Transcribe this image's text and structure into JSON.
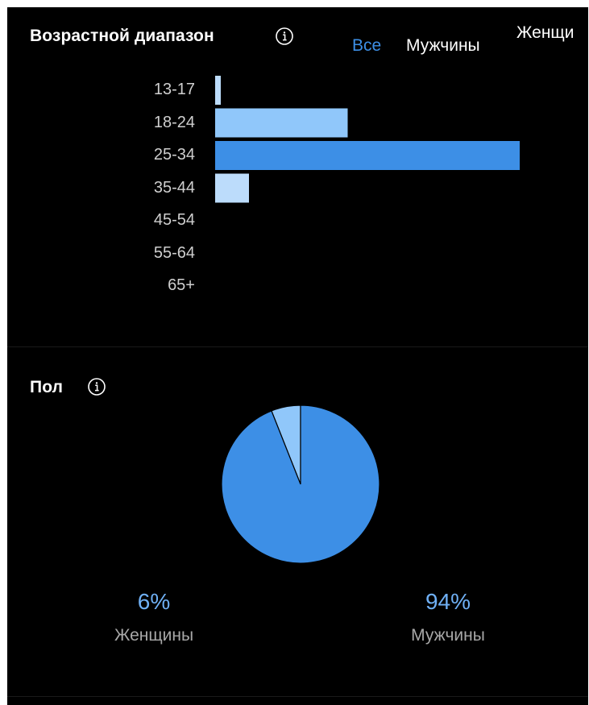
{
  "age": {
    "title": "Возрастной диапазон",
    "tabs": [
      {
        "label": "Все",
        "active": true
      },
      {
        "label": "Мужчины",
        "active": false
      },
      {
        "label": "Женщины",
        "active": false
      }
    ]
  },
  "gender": {
    "title": "Пол",
    "legend": [
      {
        "pct": "6%",
        "label": "Женщины"
      },
      {
        "pct": "94%",
        "label": "Мужчины"
      }
    ]
  },
  "colors": {
    "background": "#000000",
    "accent": "#3d8fe6",
    "light": "#90c7fa",
    "lighter": "#bcdcfb"
  },
  "chart_data": [
    {
      "type": "bar",
      "orientation": "horizontal",
      "categories": [
        "13-17",
        "18-24",
        "25-34",
        "35-44",
        "45-54",
        "55-64",
        "65+"
      ],
      "values": [
        1,
        23.5,
        54,
        6,
        0,
        0,
        0
      ],
      "xlim": [
        0,
        100
      ],
      "colors": [
        "#bcdcfb",
        "#90c7fa",
        "#3d8fe6",
        "#bcdcfb",
        "#bcdcfb",
        "#bcdcfb",
        "#bcdcfb"
      ]
    },
    {
      "type": "pie",
      "categories": [
        "Женщины",
        "Мужчины"
      ],
      "values": [
        6,
        94
      ],
      "colors": [
        "#90c7fa",
        "#3d8fe6"
      ]
    }
  ]
}
